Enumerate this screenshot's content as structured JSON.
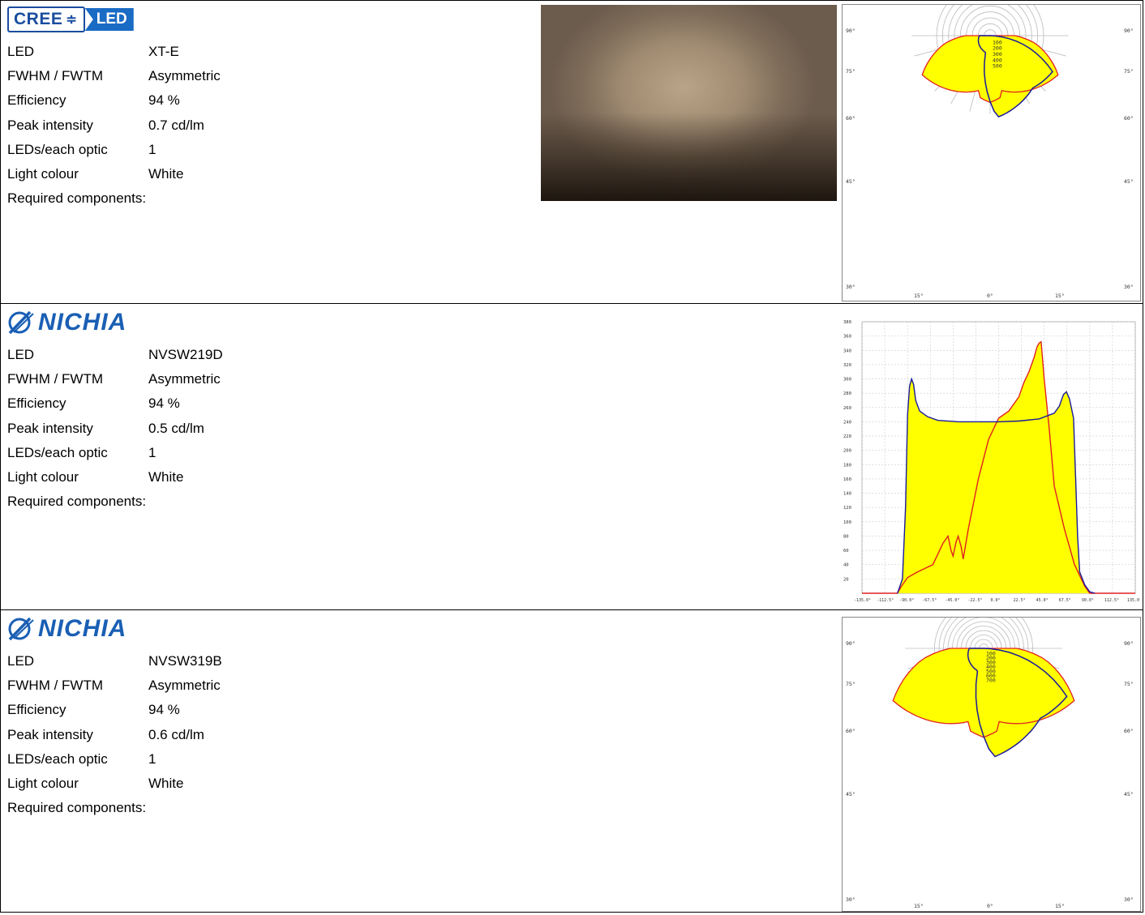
{
  "labels": {
    "led": "LED",
    "fwhm": "FWHM / FWTM",
    "efficiency": "Efficiency",
    "peak": "Peak intensity",
    "leds_per_optic": "LEDs/each optic",
    "light_colour": "Light colour",
    "required": "Required components:"
  },
  "entries": [
    {
      "brand": "CREE",
      "logo_text": "CREE",
      "logo_text2": "LED",
      "led": "XT-E",
      "fwhm": "Asymmetric",
      "efficiency": "94 %",
      "peak": "0.7 cd/lm",
      "leds_per_optic": "1",
      "light_colour": "White"
    },
    {
      "brand": "NICHIA",
      "logo_text": "NICHIA",
      "led": "NVSW219D",
      "fwhm": "Asymmetric",
      "efficiency": "94 %",
      "peak": "0.5 cd/lm",
      "leds_per_optic": "1",
      "light_colour": "White"
    },
    {
      "brand": "NICHIA",
      "logo_text": "NICHIA",
      "led": "NVSW319B",
      "fwhm": "Asymmetric",
      "efficiency": "94 %",
      "peak": "0.6 cd/lm",
      "leds_per_optic": "1",
      "light_colour": "White"
    }
  ],
  "colors": {
    "fill": "#ffff00",
    "red": "#e02020",
    "blue": "#1a1a9a",
    "grid": "#bbbbbb"
  },
  "chart_data": [
    {
      "type": "polar",
      "angle_labels_left": [
        "90°",
        "75°",
        "60°",
        "45°",
        "30°"
      ],
      "angle_labels_right": [
        "90°",
        "75°",
        "60°",
        "45°",
        "30°"
      ],
      "bottom_labels": [
        "15°",
        "0°",
        "15°"
      ],
      "radial_labels": [
        "100",
        "200",
        "300",
        "400",
        "500"
      ],
      "rmax": 600
    },
    {
      "type": "line",
      "xticks": [
        "-135.0°",
        "-112.5°",
        "-90.0°",
        "-67.5°",
        "-45.0°",
        "-22.5°",
        "0.0°",
        "22.5°",
        "45.0°",
        "67.5°",
        "90.0°",
        "112.5°",
        "135.0°"
      ],
      "yticks": [
        "20",
        "40",
        "60",
        "80",
        "100",
        "120",
        "140",
        "160",
        "180",
        "200",
        "220",
        "240",
        "260",
        "280",
        "300",
        "320",
        "340",
        "360",
        "380"
      ],
      "xlim": [
        -135,
        135
      ],
      "ylim": [
        0,
        380
      ],
      "series": [
        {
          "color": "red",
          "x": [
            -135,
            -100,
            -96,
            -90,
            -80,
            -65,
            -55,
            -50,
            -47,
            -45,
            -42,
            -40,
            -37,
            -35,
            -30,
            -20,
            -10,
            0,
            10,
            20,
            25,
            30,
            35,
            38,
            40,
            42,
            45,
            50,
            55,
            65,
            75,
            85,
            90,
            135
          ],
          "y": [
            0,
            0,
            10,
            22,
            30,
            40,
            70,
            80,
            60,
            52,
            72,
            80,
            65,
            48,
            90,
            160,
            215,
            245,
            255,
            275,
            295,
            310,
            330,
            345,
            350,
            352,
            300,
            230,
            150,
            90,
            40,
            10,
            0,
            0
          ]
        },
        {
          "color": "blue",
          "x": [
            -100,
            -95,
            -92,
            -90,
            -88,
            -86,
            -84,
            -82,
            -78,
            -70,
            -60,
            -40,
            -20,
            0,
            20,
            40,
            55,
            60,
            64,
            67,
            70,
            74,
            78,
            80,
            85,
            90,
            95
          ],
          "y": [
            0,
            20,
            120,
            250,
            290,
            300,
            292,
            270,
            255,
            247,
            242,
            240,
            240,
            240,
            241,
            244,
            252,
            262,
            278,
            282,
            272,
            245,
            80,
            30,
            12,
            2,
            0
          ]
        }
      ]
    },
    {
      "type": "polar",
      "angle_labels_left": [
        "90°",
        "75°",
        "60°",
        "45°",
        "30°"
      ],
      "angle_labels_right": [
        "90°",
        "75°",
        "60°",
        "45°",
        "30°"
      ],
      "bottom_labels": [
        "15°",
        "0°",
        "15°"
      ],
      "radial_labels": [
        "100",
        "200",
        "300",
        "400",
        "500",
        "600",
        "700"
      ],
      "rmax": 800
    }
  ]
}
